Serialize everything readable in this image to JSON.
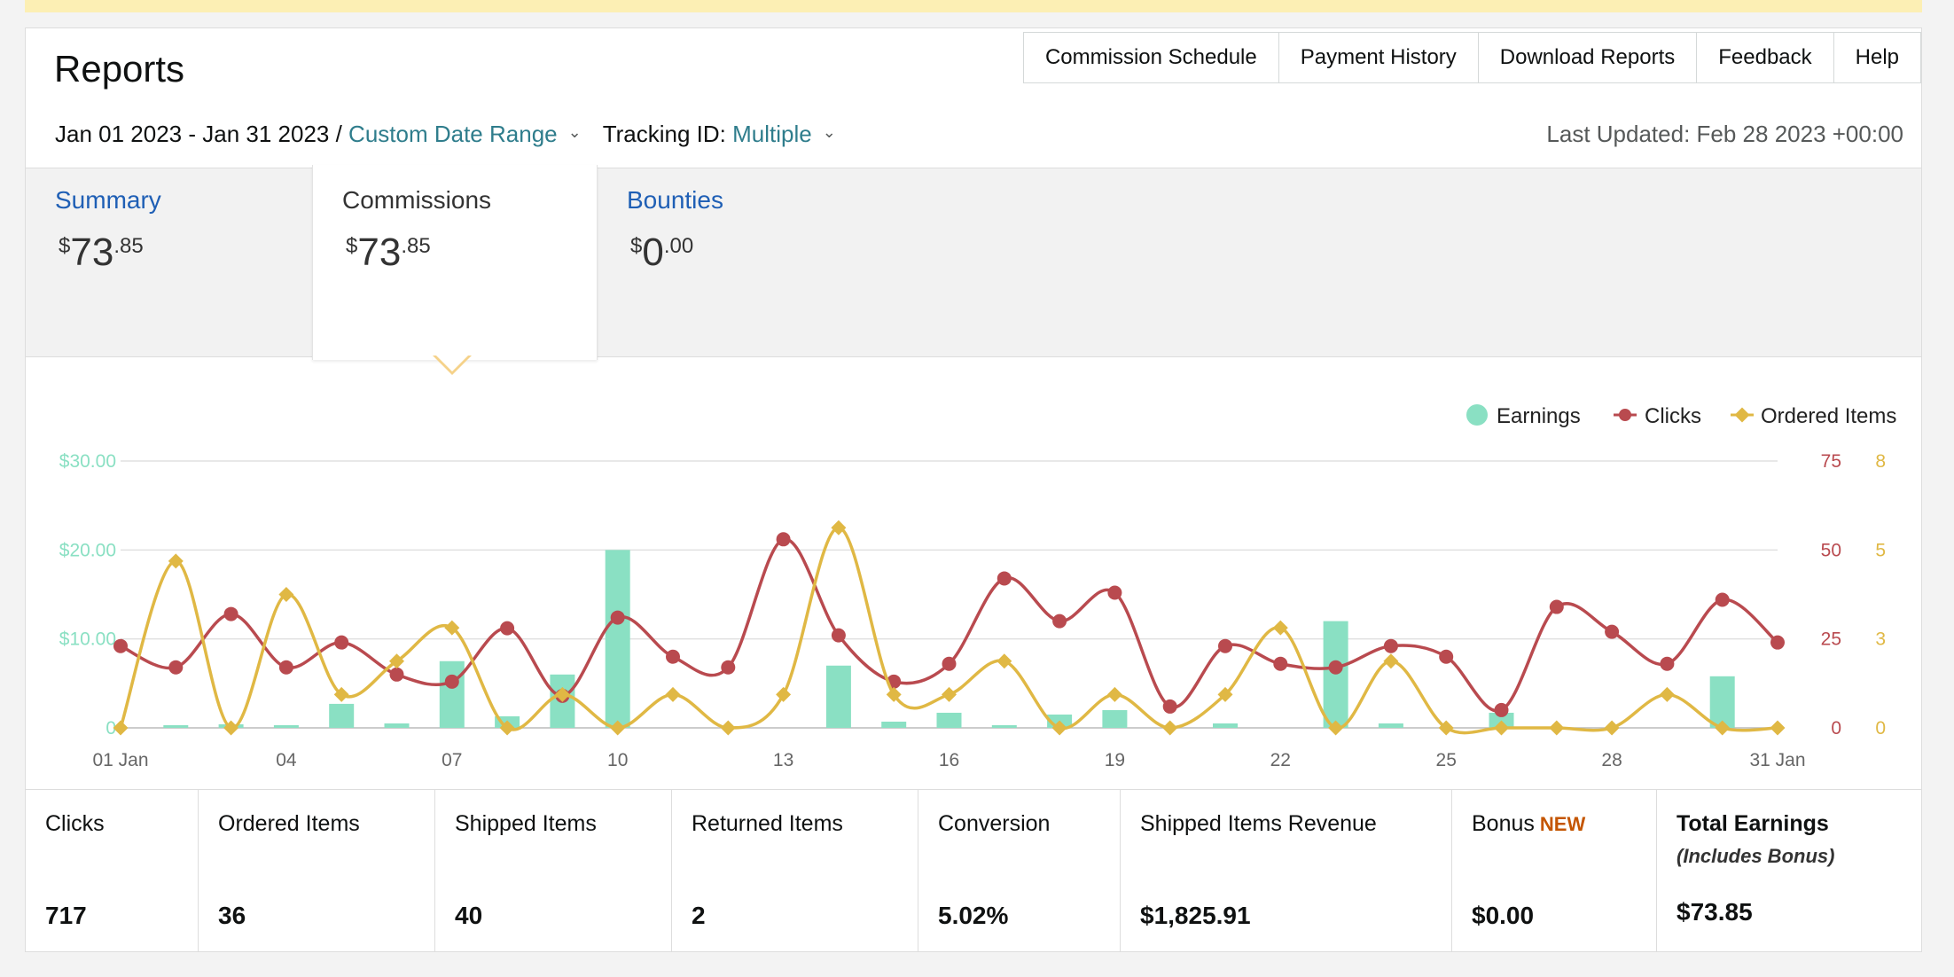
{
  "header": {
    "title": "Reports",
    "nav": [
      "Commission Schedule",
      "Payment History",
      "Download Reports",
      "Feedback",
      "Help"
    ],
    "date_range": "Jan 01 2023 - Jan 31 2023 /",
    "date_range_link": "Custom Date Range",
    "tracking_label": "Tracking ID:",
    "tracking_value": "Multiple",
    "last_updated": "Last Updated: Feb 28 2023 +00:00"
  },
  "tabs": [
    {
      "name": "Summary",
      "dollar": "$",
      "whole": "73",
      "cents": ".85"
    },
    {
      "name": "Commissions",
      "dollar": "$",
      "whole": "73",
      "cents": ".85"
    },
    {
      "name": "Bounties",
      "dollar": "$",
      "whole": "0",
      "cents": ".00"
    }
  ],
  "colors": {
    "earnings": "#8ae0c3",
    "clicks": "#b94a4f",
    "ordered": "#e0b844",
    "link": "#2f7d8c",
    "tab_link": "#1f5fb5",
    "new_badge": "#c45500"
  },
  "chart_data": {
    "type": "bar+line",
    "legend": [
      "Earnings",
      "Clicks",
      "Ordered Items"
    ],
    "legend_position": "top-right",
    "x": [
      "01 Jan",
      "02",
      "03",
      "04",
      "05",
      "06",
      "07",
      "08",
      "09",
      "10",
      "11",
      "12",
      "13",
      "14",
      "15",
      "16",
      "17",
      "18",
      "19",
      "20",
      "21",
      "22",
      "23",
      "24",
      "25",
      "26",
      "27",
      "28",
      "29",
      "30",
      "31 Jan"
    ],
    "x_ticks": [
      "01 Jan",
      "04",
      "07",
      "10",
      "13",
      "16",
      "19",
      "22",
      "25",
      "28",
      "31 Jan"
    ],
    "left_axis": {
      "ticks": [
        "0",
        "$10.00",
        "$20.00",
        "$30.00"
      ],
      "range": [
        0,
        30
      ]
    },
    "right_axis_clicks": {
      "ticks": [
        "0",
        "25",
        "50",
        "75"
      ],
      "range": [
        0,
        75
      ]
    },
    "right_axis_ordered": {
      "ticks": [
        "0",
        "3",
        "5",
        "8"
      ],
      "range": [
        0,
        8
      ]
    },
    "series": [
      {
        "name": "Earnings",
        "kind": "bar",
        "values": [
          0,
          0.3,
          0.4,
          0.3,
          2.7,
          0.5,
          7.5,
          1.3,
          6.0,
          20.0,
          0,
          0,
          0,
          7.0,
          0.7,
          1.7,
          0.3,
          1.5,
          2.0,
          0,
          0.5,
          0,
          12.0,
          0.5,
          0,
          1.7,
          0,
          0,
          0,
          5.8,
          0
        ]
      },
      {
        "name": "Clicks",
        "kind": "line",
        "values": [
          23,
          17,
          32,
          17,
          24,
          15,
          13,
          28,
          9,
          31,
          20,
          17,
          53,
          26,
          13,
          18,
          42,
          30,
          38,
          6,
          23,
          18,
          17,
          23,
          20,
          5,
          34,
          27,
          18,
          36,
          24
        ]
      },
      {
        "name": "Ordered Items",
        "kind": "line",
        "values": [
          0,
          5,
          0,
          4,
          1,
          2,
          3,
          0,
          1,
          0,
          1,
          0,
          1,
          6,
          1,
          1,
          2,
          0,
          1,
          0,
          1,
          3,
          0,
          2,
          0,
          0,
          0,
          0,
          1,
          0,
          0
        ]
      }
    ]
  },
  "stats": [
    {
      "label": "Clicks",
      "value": "717"
    },
    {
      "label": "Ordered Items",
      "value": "36"
    },
    {
      "label": "Shipped Items",
      "value": "40"
    },
    {
      "label": "Returned Items",
      "value": "2"
    },
    {
      "label": "Conversion",
      "value": "5.02%"
    },
    {
      "label": "Shipped Items Revenue",
      "value": "$1,825.91"
    },
    {
      "label": "Bonus",
      "badge": "NEW",
      "value": "$0.00"
    },
    {
      "label": "Total Earnings",
      "sub": "(Includes Bonus)",
      "value": "$73.85"
    }
  ]
}
